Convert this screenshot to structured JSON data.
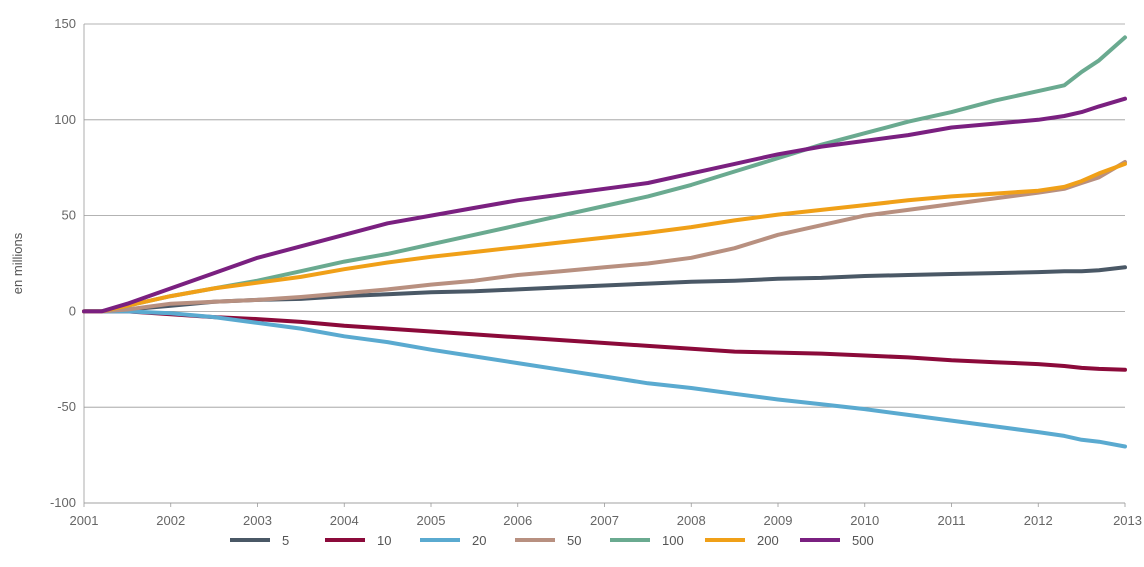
{
  "chart_data": {
    "type": "line",
    "title": "",
    "xlabel": "",
    "ylabel": "en millions",
    "xlim": [
      2001,
      2013
    ],
    "ylim": [
      -100,
      150
    ],
    "x_ticks": [
      "2001",
      "2002",
      "2003",
      "2004",
      "2005",
      "2006",
      "2007",
      "2008",
      "2009",
      "2010",
      "2011",
      "2012",
      "2013"
    ],
    "y_ticks": [
      "150",
      "100",
      "50",
      "0",
      "-50",
      "-100"
    ],
    "grid": "horizontal",
    "legend_position": "bottom",
    "x": [
      2001.0,
      2001.2,
      2001.5,
      2002.0,
      2002.5,
      2003.0,
      2003.5,
      2004.0,
      2004.5,
      2005.0,
      2005.5,
      2006.0,
      2006.5,
      2007.0,
      2007.5,
      2008.0,
      2008.5,
      2009.0,
      2009.5,
      2010.0,
      2010.5,
      2011.0,
      2011.5,
      2012.0,
      2012.3,
      2012.5,
      2012.7,
      2013.0
    ],
    "series": [
      {
        "name": "5",
        "color": "#4a5866",
        "values": [
          0,
          0,
          1,
          3,
          5,
          6,
          6.5,
          8,
          9,
          10,
          10.5,
          11.5,
          12.5,
          13.5,
          14.5,
          15.5,
          16,
          17,
          17.5,
          18.5,
          19,
          19.5,
          20,
          20.5,
          21,
          21,
          21.5,
          23
        ]
      },
      {
        "name": "10",
        "color": "#8b0a3a",
        "values": [
          0,
          0,
          0,
          -1.5,
          -3,
          -4,
          -5.5,
          -7.5,
          -9,
          -10.5,
          -12,
          -13.5,
          -15,
          -16.5,
          -18,
          -19.5,
          -21,
          -21.5,
          -22,
          -23,
          -24,
          -25.5,
          -26.5,
          -27.5,
          -28.5,
          -29.5,
          -30,
          -30.5
        ]
      },
      {
        "name": "20",
        "color": "#5aaad0",
        "values": [
          0,
          0,
          0,
          -1,
          -3,
          -6,
          -9,
          -13,
          -16,
          -20,
          -23.5,
          -27,
          -30.5,
          -34,
          -37.5,
          -40,
          -43,
          -46,
          -48.5,
          -51,
          -54,
          -57,
          -60,
          -63,
          -65,
          -67,
          -68,
          -70.5
        ]
      },
      {
        "name": "50",
        "color": "#b89080",
        "values": [
          0,
          0,
          1,
          4,
          5,
          6,
          7.5,
          9.5,
          11.5,
          14,
          16,
          19,
          21,
          23,
          25,
          28,
          33,
          40,
          45,
          50,
          53,
          56,
          59,
          62,
          64,
          67,
          70,
          78
        ]
      },
      {
        "name": "100",
        "color": "#6aaa90",
        "values": [
          0,
          0,
          3,
          8,
          12,
          16,
          21,
          26,
          30,
          35,
          40,
          45,
          50,
          55,
          60,
          66,
          73,
          80,
          87,
          93,
          99,
          104,
          110,
          115,
          118,
          125,
          131,
          143
        ]
      },
      {
        "name": "200",
        "color": "#f0a018",
        "values": [
          0,
          0,
          3,
          8,
          12,
          15,
          18,
          22,
          25.5,
          28.5,
          31,
          33.5,
          36,
          38.5,
          41,
          44,
          47.5,
          50.5,
          53,
          55.5,
          58,
          60,
          61.5,
          63,
          65,
          68,
          72,
          77
        ]
      },
      {
        "name": "500",
        "color": "#7a2080",
        "values": [
          0,
          0,
          4,
          12,
          20,
          28,
          34,
          40,
          46,
          50,
          54,
          58,
          61,
          64,
          67,
          72,
          77,
          82,
          86,
          89,
          92,
          96,
          98,
          100,
          102,
          104,
          107,
          111
        ]
      }
    ]
  }
}
